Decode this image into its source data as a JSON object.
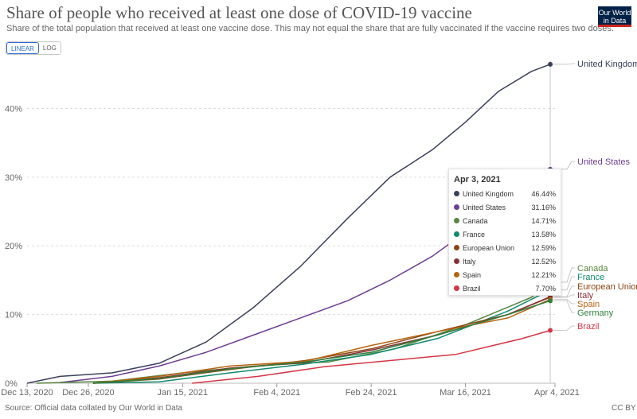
{
  "header": {
    "title": "Share of people who received at least one dose of COVID-19 vaccine",
    "subtitle": "Share of the total population that received at least one vaccine dose. This may not equal the share that are fully vaccinated if the vaccine requires two doses.",
    "logo_line1": "Our World",
    "logo_line2": "in Data"
  },
  "controls": {
    "linear_label": "LINEAR",
    "log_label": "LOG",
    "selected": "LINEAR"
  },
  "footer": {
    "source": "Source: Official data collated by Our World in Data",
    "license": "CC BY"
  },
  "colors": {
    "accent": "#2a6ecf",
    "logo_bg": "#002147",
    "logo_bar": "#ce261e"
  },
  "tooltip": {
    "date": "Apr 3, 2021",
    "rows": [
      {
        "name": "United Kingdom",
        "value": "46.44%",
        "color": "#3a3f5c"
      },
      {
        "name": "United States",
        "value": "31.16%",
        "color": "#6d3e91"
      },
      {
        "name": "Canada",
        "value": "14.71%",
        "color": "#58853f"
      },
      {
        "name": "France",
        "value": "13.58%",
        "color": "#0f8a6d"
      },
      {
        "name": "European Union",
        "value": "12.59%",
        "color": "#8b4513"
      },
      {
        "name": "Italy",
        "value": "12.52%",
        "color": "#883039"
      },
      {
        "name": "Spain",
        "value": "12.21%",
        "color": "#b8640f"
      },
      {
        "name": "Brazil",
        "value": "7.70%",
        "color": "#d63545"
      }
    ]
  },
  "chart_data": {
    "type": "line",
    "title": "Share of people who received at least one dose of COVID-19 vaccine",
    "xlim": [
      "2020-12-13",
      "2021-04-04"
    ],
    "ylim": [
      0,
      47
    ],
    "x_ticks": [
      "Dec 13, 2020",
      "Dec 26, 2020",
      "Jan 15, 2021",
      "Feb 4, 2021",
      "Feb 24, 2021",
      "Mar 16, 2021",
      "Apr 4, 2021"
    ],
    "x_tick_dates": [
      "2020-12-13",
      "2020-12-26",
      "2021-01-15",
      "2021-02-04",
      "2021-02-24",
      "2021-03-16",
      "2021-04-04"
    ],
    "y_ticks": [
      0,
      10,
      20,
      30,
      40
    ],
    "y_tick_labels": [
      "0%",
      "10%",
      "20%",
      "30%",
      "40%"
    ],
    "grid": true,
    "legend": "right",
    "series": [
      {
        "name": "United Kingdom",
        "color": "#3a3f5c",
        "points": [
          [
            "2020-12-13",
            0
          ],
          [
            "2020-12-20",
            1.0
          ],
          [
            "2020-12-31",
            1.5
          ],
          [
            "2021-01-10",
            2.9
          ],
          [
            "2021-01-20",
            6.0
          ],
          [
            "2021-01-30",
            11.0
          ],
          [
            "2021-02-09",
            17.0
          ],
          [
            "2021-02-19",
            24.0
          ],
          [
            "2021-02-28",
            30.0
          ],
          [
            "2021-03-09",
            34.0
          ],
          [
            "2021-03-16",
            38.0
          ],
          [
            "2021-03-23",
            42.5
          ],
          [
            "2021-03-30",
            45.4
          ],
          [
            "2021-04-03",
            46.44
          ]
        ]
      },
      {
        "name": "United States",
        "color": "#6d3e91",
        "points": [
          [
            "2020-12-20",
            0.1
          ],
          [
            "2020-12-31",
            1.0
          ],
          [
            "2021-01-10",
            2.5
          ],
          [
            "2021-01-20",
            4.5
          ],
          [
            "2021-01-30",
            7.0
          ],
          [
            "2021-02-09",
            9.5
          ],
          [
            "2021-02-19",
            12.0
          ],
          [
            "2021-02-28",
            15.0
          ],
          [
            "2021-03-09",
            18.5
          ],
          [
            "2021-03-16",
            22.0
          ],
          [
            "2021-03-23",
            25.5
          ],
          [
            "2021-03-30",
            29.0
          ],
          [
            "2021-04-03",
            31.16
          ]
        ]
      },
      {
        "name": "Canada",
        "color": "#58853f",
        "points": [
          [
            "2020-12-15",
            0
          ],
          [
            "2020-12-31",
            0.3
          ],
          [
            "2021-01-15",
            1.5
          ],
          [
            "2021-02-01",
            2.6
          ],
          [
            "2021-02-15",
            3.1
          ],
          [
            "2021-03-01",
            5.0
          ],
          [
            "2021-03-16",
            8.5
          ],
          [
            "2021-03-30",
            12.5
          ],
          [
            "2021-04-03",
            14.71
          ]
        ]
      },
      {
        "name": "France",
        "color": "#0f8a6d",
        "points": [
          [
            "2020-12-27",
            0
          ],
          [
            "2021-01-10",
            0.2
          ],
          [
            "2021-01-25",
            1.5
          ],
          [
            "2021-02-10",
            2.8
          ],
          [
            "2021-02-24",
            4.2
          ],
          [
            "2021-03-10",
            6.5
          ],
          [
            "2021-03-25",
            10.5
          ],
          [
            "2021-04-03",
            13.58
          ]
        ]
      },
      {
        "name": "European Union",
        "color": "#8b4513",
        "points": [
          [
            "2020-12-27",
            0
          ],
          [
            "2021-01-10",
            0.6
          ],
          [
            "2021-01-25",
            2.0
          ],
          [
            "2021-02-10",
            3.3
          ],
          [
            "2021-02-24",
            5.0
          ],
          [
            "2021-03-10",
            7.5
          ],
          [
            "2021-03-25",
            10.0
          ],
          [
            "2021-04-03",
            12.59
          ]
        ]
      },
      {
        "name": "Italy",
        "color": "#883039",
        "points": [
          [
            "2020-12-27",
            0
          ],
          [
            "2021-01-10",
            0.8
          ],
          [
            "2021-01-25",
            2.2
          ],
          [
            "2021-02-10",
            3.0
          ],
          [
            "2021-02-24",
            4.8
          ],
          [
            "2021-03-10",
            7.0
          ],
          [
            "2021-03-25",
            10.0
          ],
          [
            "2021-04-03",
            12.52
          ]
        ]
      },
      {
        "name": "Spain",
        "color": "#b8640f",
        "points": [
          [
            "2020-12-27",
            0
          ],
          [
            "2021-01-10",
            1.0
          ],
          [
            "2021-01-25",
            2.5
          ],
          [
            "2021-02-10",
            3.2
          ],
          [
            "2021-02-24",
            5.5
          ],
          [
            "2021-03-10",
            7.5
          ],
          [
            "2021-03-25",
            9.5
          ],
          [
            "2021-04-03",
            12.21
          ]
        ]
      },
      {
        "name": "Germany",
        "color": "#2f7f3a",
        "points": [
          [
            "2020-12-27",
            0
          ],
          [
            "2021-01-10",
            0.7
          ],
          [
            "2021-01-25",
            2.1
          ],
          [
            "2021-02-10",
            3.1
          ],
          [
            "2021-02-24",
            4.5
          ],
          [
            "2021-03-10",
            7.0
          ],
          [
            "2021-03-25",
            10.0
          ],
          [
            "2021-04-03",
            12.0
          ]
        ]
      },
      {
        "name": "Brazil",
        "color": "#d63545",
        "points": [
          [
            "2021-01-17",
            0
          ],
          [
            "2021-01-31",
            1.0
          ],
          [
            "2021-02-14",
            2.4
          ],
          [
            "2021-02-28",
            3.3
          ],
          [
            "2021-03-14",
            4.2
          ],
          [
            "2021-03-28",
            6.5
          ],
          [
            "2021-04-03",
            7.7
          ]
        ]
      }
    ]
  }
}
